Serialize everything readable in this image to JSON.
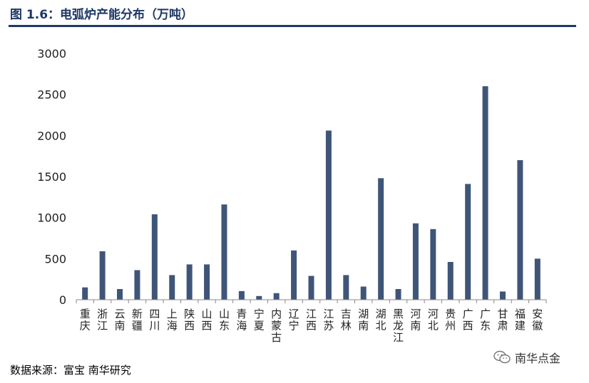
{
  "title": "图 1.6：电弧炉产能分布（万吨）",
  "source": "数据来源：富宝 南华研究",
  "watermark": "南华点金",
  "colors": {
    "bar": "#3f5578",
    "title": "#1f3864",
    "axis": "#888888"
  },
  "chart_data": {
    "type": "bar",
    "title": "图 1.6：电弧炉产能分布（万吨）",
    "xlabel": "",
    "ylabel": "",
    "ylim": [
      0,
      3000
    ],
    "yticks": [
      0,
      500,
      1000,
      1500,
      2000,
      2500,
      3000
    ],
    "grid": false,
    "legend": "none",
    "categories": [
      "重庆",
      "浙江",
      "云南",
      "新疆",
      "四川",
      "上海",
      "陕西",
      "山西",
      "山东",
      "青海",
      "宁夏",
      "内蒙古",
      "辽宁",
      "江西",
      "江苏",
      "吉林",
      "湖南",
      "湖北",
      "黑龙江",
      "河南",
      "河北",
      "贵州",
      "广西",
      "广东",
      "甘肃",
      "福建",
      "安徽"
    ],
    "values": [
      150,
      590,
      130,
      360,
      1040,
      300,
      430,
      430,
      1160,
      105,
      45,
      80,
      600,
      290,
      2060,
      300,
      160,
      1480,
      130,
      930,
      860,
      460,
      1410,
      2600,
      100,
      1700,
      500
    ]
  }
}
